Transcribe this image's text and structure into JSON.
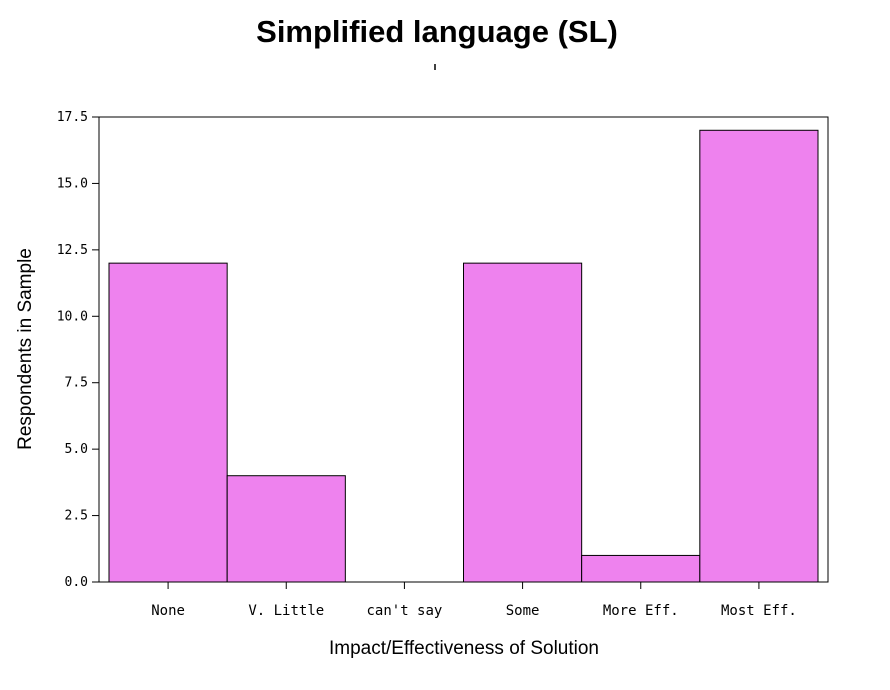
{
  "chart_data": {
    "type": "bar",
    "title": "Simplified language (SL)",
    "xlabel": "Impact/Effectiveness of Solution",
    "ylabel": "Respondents in Sample",
    "categories": [
      "None",
      "V. Little",
      "can't say",
      "Some",
      "More Eff.",
      "Most Eff."
    ],
    "values": [
      12,
      4,
      0,
      12,
      1,
      17
    ],
    "ylim": [
      0,
      17.5
    ],
    "yticks": [
      "0.0",
      "2.5",
      "5.0",
      "7.5",
      "10.0",
      "12.5",
      "15.0",
      "17.5"
    ],
    "grid": false,
    "legend": "none",
    "colors": {
      "bar_fill": "#ee82ee",
      "bar_stroke": "#000000",
      "axis": "#000000"
    }
  }
}
